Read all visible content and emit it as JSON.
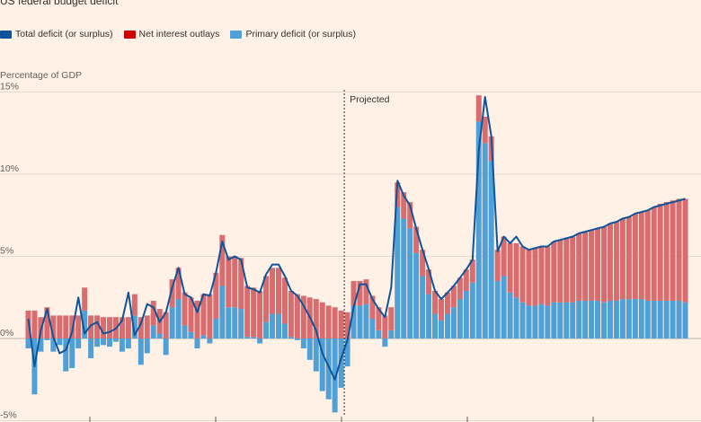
{
  "chart_data": {
    "type": "bar",
    "title": "US federal budget deficit",
    "ylabel": "Percentage of GDP",
    "ylim": [
      -5,
      15
    ],
    "yticks": [
      {
        "value": 15,
        "label": "15%"
      },
      {
        "value": 10,
        "label": "10%"
      },
      {
        "value": 5,
        "label": "5%"
      },
      {
        "value": 0,
        "label": "0%"
      },
      {
        "value": -5,
        "label": "-5%"
      }
    ],
    "annotation": "Projected",
    "projected_start_index": 51,
    "grid": true,
    "legend_position": "top-left",
    "series": [
      {
        "name": "Total deficit (or surplus)",
        "color": "#0f5499",
        "kind": "line",
        "values": [
          1.2,
          -1.7,
          0.5,
          1.8,
          0.1,
          -0.9,
          -0.7,
          0.4,
          2.5,
          0.3,
          0.8,
          1.0,
          0.3,
          0.4,
          0.6,
          1.1,
          2.8,
          0.2,
          0.9,
          2.1,
          1.9,
          1.0,
          1.6,
          3.1,
          4.3,
          2.7,
          2.5,
          1.6,
          2.7,
          2.6,
          4.0,
          5.9,
          4.8,
          5.0,
          4.8,
          3.1,
          3.0,
          2.8,
          3.9,
          4.5,
          4.5,
          3.8,
          2.9,
          2.6,
          2.0,
          1.3,
          0.5,
          -0.9,
          -1.7,
          -2.5,
          -1.2,
          -0.1,
          1.9,
          3.3,
          3.3,
          2.4,
          1.8,
          1.3,
          3.1,
          9.6,
          8.7,
          8.1,
          6.7,
          5.4,
          4.2,
          2.9,
          2.4,
          2.8,
          3.2,
          3.7,
          4.2,
          4.8,
          11.5,
          14.7,
          12.3,
          5.3,
          6.2,
          5.8,
          6.2,
          5.6,
          5.4,
          5.5,
          5.6,
          5.6,
          5.9,
          6.0,
          6.1,
          6.2,
          6.4,
          6.5,
          6.6,
          6.7,
          6.8,
          7.0,
          7.1,
          7.3,
          7.4,
          7.6,
          7.7,
          7.8,
          8.0,
          8.1,
          8.2,
          8.3,
          8.4,
          8.5
        ]
      },
      {
        "name": "Net interest outlays",
        "color": "#cc0000",
        "kind": "bar",
        "values": [
          1.7,
          1.7,
          1.3,
          1.9,
          1.4,
          1.4,
          1.4,
          1.4,
          1.4,
          1.4,
          1.4,
          1.4,
          1.3,
          1.3,
          1.3,
          1.3,
          1.3,
          1.3,
          1.3,
          1.4,
          1.5,
          1.5,
          1.6,
          1.7,
          1.9,
          2.0,
          2.1,
          2.3,
          2.5,
          2.7,
          2.8,
          3.1,
          3.1,
          3.1,
          3.1,
          3.1,
          3.0,
          2.9,
          2.8,
          2.8,
          2.8,
          2.8,
          2.8,
          2.7,
          2.6,
          2.5,
          2.4,
          2.2,
          2.0,
          1.9,
          1.7,
          1.6,
          1.5,
          1.5,
          1.5,
          1.4,
          1.4,
          1.4,
          1.4,
          1.5,
          1.6,
          1.6,
          1.6,
          1.6,
          1.5,
          1.4,
          1.3,
          1.3,
          1.3,
          1.3,
          1.3,
          1.4,
          1.6,
          1.6,
          1.5,
          1.9,
          2.4,
          3.0,
          3.3,
          3.4,
          3.4,
          3.5,
          3.5,
          3.6,
          3.7,
          3.8,
          3.9,
          4.0,
          4.1,
          4.2,
          4.3,
          4.4,
          4.6,
          4.7,
          4.8,
          4.9,
          5.0,
          5.2,
          5.3,
          5.5,
          5.7,
          5.9,
          6.0,
          6.1,
          6.2,
          6.3
        ]
      },
      {
        "name": "Primary deficit (or surplus)",
        "color": "#4fa0d6",
        "kind": "bar",
        "values": [
          -0.6,
          -3.4,
          -0.8,
          -0.1,
          -0.8,
          -0.4,
          -2.0,
          -1.8,
          -0.6,
          1.7,
          -1.2,
          -0.5,
          -0.4,
          -0.5,
          -0.2,
          -0.8,
          -0.6,
          1.4,
          -1.6,
          -0.9,
          0.8,
          0.3,
          -1.0,
          1.9,
          2.4,
          0.8,
          0.4,
          -0.6,
          0.2,
          -0.3,
          1.2,
          3.2,
          1.9,
          1.9,
          1.8,
          0.1,
          0.1,
          -0.3,
          1.0,
          1.5,
          1.5,
          0.9,
          0.1,
          -0.1,
          -0.6,
          -1.3,
          -2.0,
          -3.2,
          -3.7,
          -4.5,
          -3.0,
          -1.7,
          2.0,
          2.0,
          2.1,
          1.2,
          0.5,
          -0.5,
          0.5,
          8.0,
          7.3,
          6.7,
          5.2,
          3.8,
          2.7,
          1.5,
          1.1,
          1.5,
          1.9,
          2.4,
          2.9,
          3.4,
          13.2,
          11.9,
          10.8,
          3.5,
          3.8,
          2.8,
          2.5,
          2.2,
          2.0,
          2.0,
          2.1,
          2.0,
          2.2,
          2.2,
          2.2,
          2.2,
          2.3,
          2.3,
          2.3,
          2.3,
          2.2,
          2.3,
          2.3,
          2.4,
          2.4,
          2.4,
          2.4,
          2.3,
          2.3,
          2.3,
          2.3,
          2.3,
          2.3,
          2.2
        ]
      }
    ]
  }
}
